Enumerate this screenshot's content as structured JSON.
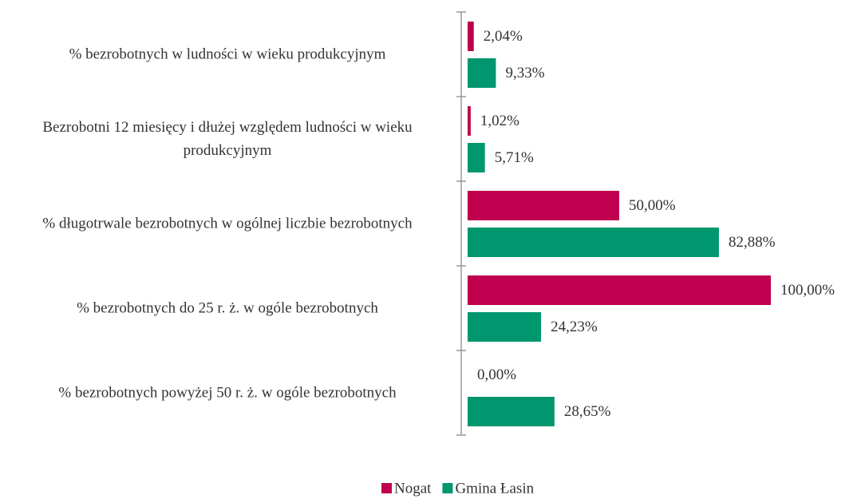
{
  "chart_data": {
    "type": "bar",
    "orientation": "horizontal",
    "categories": [
      "% bezrobotnych w ludności w wieku produkcyjnym",
      "Bezrobotni 12 miesięcy i dłużej względem ludności w wieku produkcyjnym",
      "% długotrwale bezrobotnych  w ogólnej liczbie bezrobotnych",
      "% bezrobotnych do 25 r. ż. w ogóle bezrobotnych",
      "% bezrobotnych powyżej 50 r. ż. w ogóle bezrobotnych"
    ],
    "series": [
      {
        "name": "Nogat",
        "color": "#c0004e",
        "values": [
          2.04,
          1.02,
          50,
          100,
          0
        ],
        "value_labels": [
          "2,04%",
          "1,02%",
          "50,00%",
          "100,00%",
          "0,00%"
        ]
      },
      {
        "name": "Gmina Łasin",
        "color": "#00976f",
        "values": [
          9.33,
          5.71,
          82.88,
          24.23,
          28.65
        ],
        "value_labels": [
          "9,33%",
          "5,71%",
          "82,88%",
          "24,23%",
          "28,65%"
        ]
      }
    ],
    "xlim": [
      0,
      100
    ],
    "legend": "bottom"
  }
}
